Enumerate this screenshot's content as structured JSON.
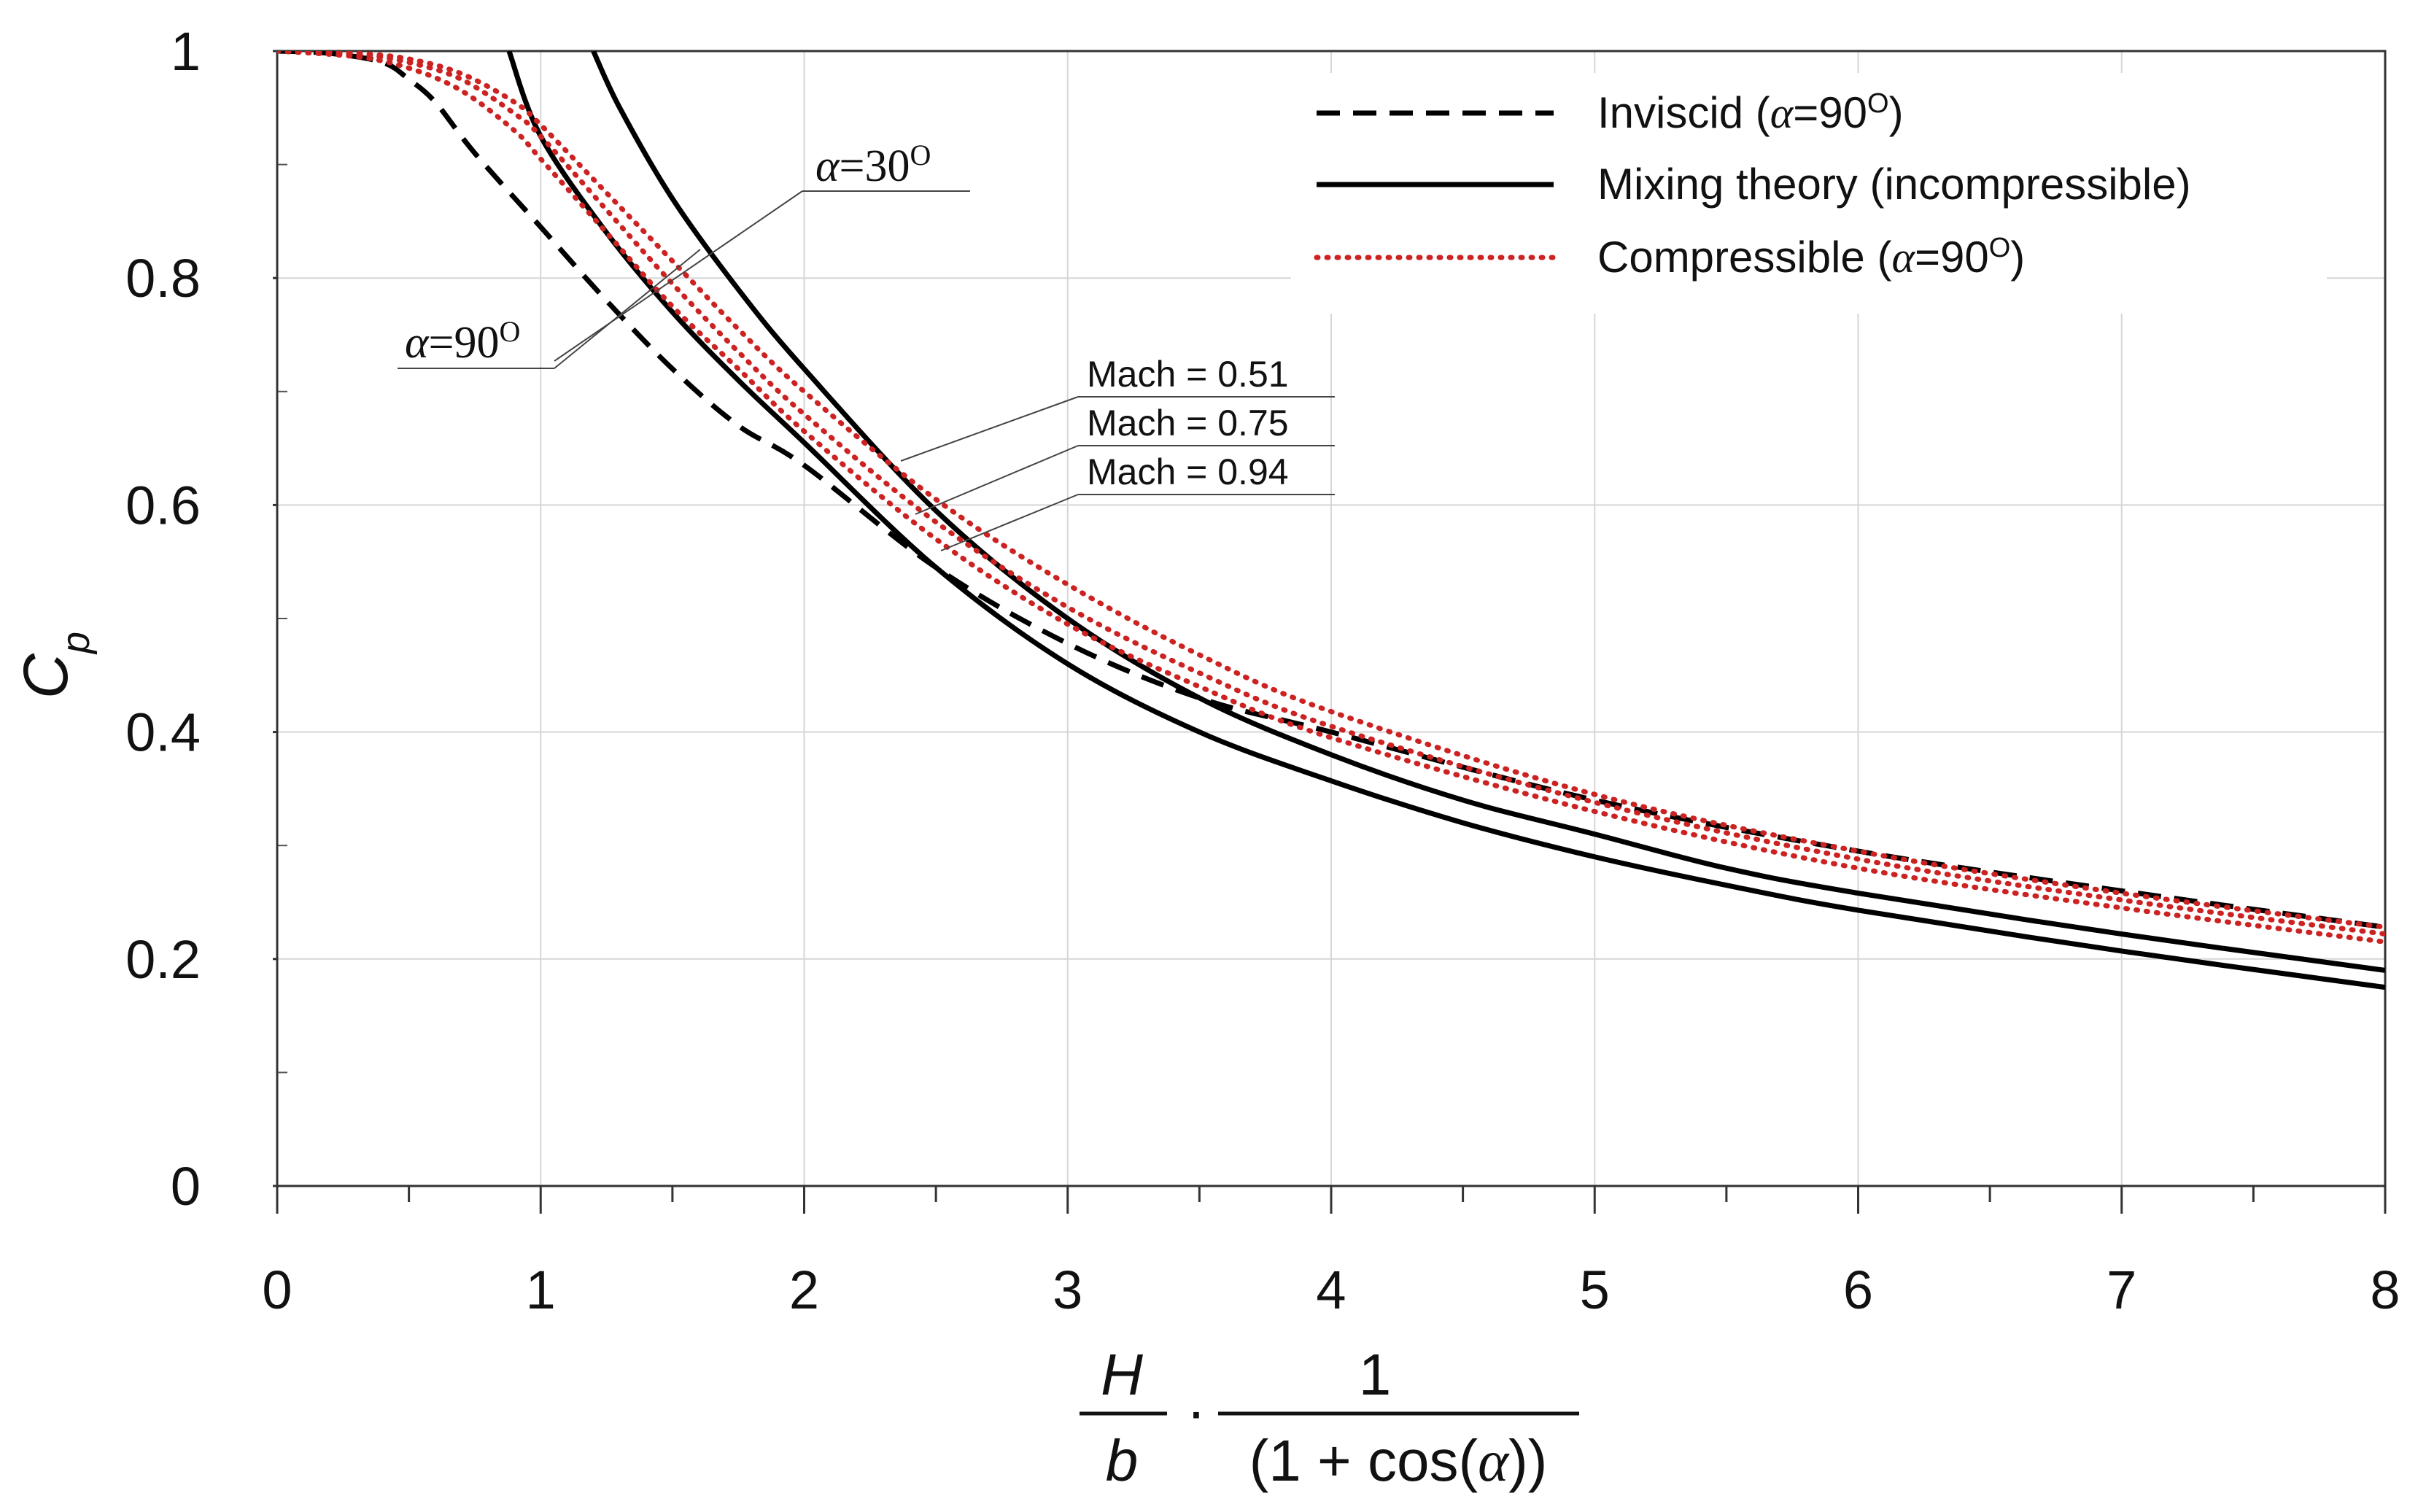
{
  "chart_data": {
    "type": "line",
    "xlim": [
      0,
      8
    ],
    "ylim": [
      0,
      1
    ],
    "grid": true,
    "x_ticks": [
      "0",
      "1",
      "2",
      "3",
      "4",
      "5",
      "6",
      "7",
      "8"
    ],
    "y_ticks": [
      "0",
      "0.2",
      "0.4",
      "0.6",
      "0.8",
      "1"
    ],
    "ylabel": {
      "main": "C",
      "sub": "p"
    },
    "xlabel": {
      "frac1_num": "H",
      "frac1_den": "b",
      "dot": "·",
      "frac2_num": "1",
      "frac2_den_pre": "(1 + cos(",
      "frac2_den_alpha": "α",
      "frac2_den_post": "))"
    },
    "legend": {
      "position": "top-right",
      "items": [
        {
          "pre": "Inviscid (",
          "alpha": "α",
          "post": "=90",
          "sup": "O",
          "close": ")",
          "style": "dashed",
          "color": "#000000"
        },
        {
          "pre": "Mixing theory (incompressible)",
          "alpha": "",
          "post": "",
          "sup": "",
          "close": "",
          "style": "solid",
          "color": "#000000"
        },
        {
          "pre": "Compressible (",
          "alpha": "α",
          "post": "=90",
          "sup": "O",
          "close": ")",
          "style": "dotted",
          "color": "#cc2222"
        }
      ]
    },
    "annotations": {
      "alpha30": {
        "alpha": "α",
        "value": "=30",
        "sup": "O"
      },
      "alpha90": {
        "alpha": "α",
        "value": "=90",
        "sup": "O"
      },
      "mach": [
        "Mach = 0.51",
        "Mach = 0.75",
        "Mach = 0.94"
      ]
    },
    "series": [
      {
        "name": "Inviscid (α=90°)",
        "style": "dashed",
        "color": "#000000",
        "x": [
          0,
          0.2,
          0.4,
          0.5,
          0.6,
          0.75,
          1.0,
          1.25,
          1.5,
          1.75,
          2.0,
          2.5,
          3.0,
          3.5,
          4.0,
          5.0,
          6.0,
          7.0,
          8.0
        ],
        "y": [
          1.0,
          0.998,
          0.99,
          0.975,
          0.955,
          0.91,
          0.845,
          0.78,
          0.72,
          0.67,
          0.635,
          0.545,
          0.478,
          0.43,
          0.4,
          0.34,
          0.295,
          0.26,
          0.228
        ]
      },
      {
        "name": "Mixing theory α=90°",
        "style": "solid",
        "color": "#000000",
        "x": [
          0.88,
          1.0,
          1.25,
          1.5,
          1.75,
          2.0,
          2.5,
          3.0,
          3.5,
          4.0,
          4.5,
          5.0,
          5.5,
          6.0,
          7.0,
          8.0
        ],
        "y": [
          1.0,
          0.925,
          0.84,
          0.77,
          0.71,
          0.655,
          0.545,
          0.46,
          0.4,
          0.357,
          0.32,
          0.29,
          0.265,
          0.243,
          0.207,
          0.175
        ]
      },
      {
        "name": "Mixing theory α=30°",
        "style": "solid",
        "color": "#000000",
        "x": [
          1.2,
          1.3,
          1.5,
          1.75,
          2.0,
          2.5,
          3.0,
          3.5,
          4.0,
          4.5,
          5.0,
          5.5,
          6.0,
          7.0,
          8.0
        ],
        "y": [
          1.0,
          0.95,
          0.87,
          0.79,
          0.72,
          0.595,
          0.5,
          0.43,
          0.38,
          0.34,
          0.31,
          0.28,
          0.258,
          0.222,
          0.19
        ]
      },
      {
        "name": "Compressible Mach = 0.51",
        "style": "dotted",
        "color": "#cc2222",
        "x": [
          0,
          0.3,
          0.5,
          0.7,
          0.9,
          1.0,
          1.25,
          1.5,
          1.75,
          2.0,
          2.5,
          3.0,
          3.5,
          4.0,
          5.0,
          6.0,
          7.0,
          8.0
        ],
        "y": [
          1.0,
          0.995,
          0.985,
          0.965,
          0.93,
          0.905,
          0.84,
          0.775,
          0.72,
          0.665,
          0.57,
          0.495,
          0.44,
          0.395,
          0.33,
          0.28,
          0.245,
          0.215
        ]
      },
      {
        "name": "Compressible Mach = 0.75",
        "style": "dotted",
        "color": "#cc2222",
        "x": [
          0,
          0.3,
          0.5,
          0.7,
          0.9,
          1.0,
          1.25,
          1.5,
          1.75,
          2.0,
          2.5,
          3.0,
          3.5,
          4.0,
          5.0,
          6.0,
          7.0,
          8.0
        ],
        "y": [
          1.0,
          0.997,
          0.99,
          0.975,
          0.945,
          0.925,
          0.86,
          0.795,
          0.735,
          0.68,
          0.585,
          0.51,
          0.452,
          0.405,
          0.338,
          0.288,
          0.252,
          0.222
        ]
      },
      {
        "name": "Compressible Mach = 0.94",
        "style": "dotted",
        "color": "#cc2222",
        "x": [
          0,
          0.3,
          0.5,
          0.7,
          0.9,
          1.0,
          1.25,
          1.5,
          1.75,
          2.0,
          2.5,
          3.0,
          3.5,
          4.0,
          5.0,
          6.0,
          7.0,
          8.0
        ],
        "y": [
          1.0,
          0.998,
          0.993,
          0.98,
          0.955,
          0.935,
          0.875,
          0.815,
          0.755,
          0.7,
          0.605,
          0.53,
          0.468,
          0.418,
          0.345,
          0.295,
          0.258,
          0.228
        ]
      }
    ]
  }
}
